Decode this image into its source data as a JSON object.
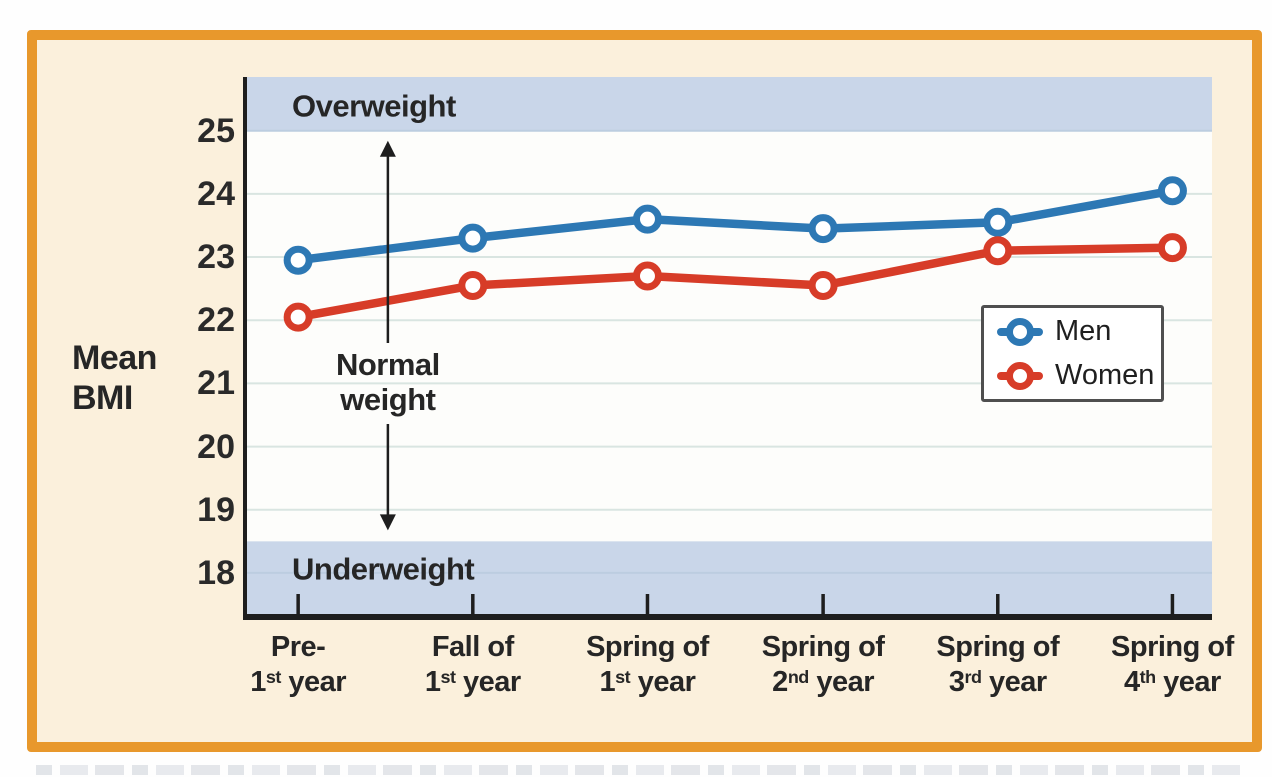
{
  "chart_data": {
    "type": "line",
    "title": "",
    "ylabel": "Mean BMI",
    "ylabel_lines": [
      "Mean",
      "BMI"
    ],
    "ylim": [
      17.35,
      25.85
    ],
    "yticks": [
      25,
      24,
      23,
      22,
      21,
      20,
      19,
      18
    ],
    "grid": true,
    "legend_position": "inside-right",
    "categories": [
      "Pre- 1st year",
      "Fall of 1st year",
      "Spring of 1st year",
      "Spring of 2nd year",
      "Spring of 3rd year",
      "Spring of 4th year"
    ],
    "category_lines": [
      {
        "line1": "Pre-",
        "num": "1",
        "ord": "st",
        "rest": " year"
      },
      {
        "line1": "Fall of",
        "num": "1",
        "ord": "st",
        "rest": " year"
      },
      {
        "line1": "Spring of",
        "num": "1",
        "ord": "st",
        "rest": " year"
      },
      {
        "line1": "Spring of",
        "num": "2",
        "ord": "nd",
        "rest": " year"
      },
      {
        "line1": "Spring of",
        "num": "3",
        "ord": "rd",
        "rest": " year"
      },
      {
        "line1": "Spring of",
        "num": "4",
        "ord": "th",
        "rest": " year"
      }
    ],
    "x_positions_pct": [
      5.3,
      23.4,
      41.5,
      59.7,
      77.8,
      95.9
    ],
    "series": [
      {
        "name": "Men",
        "color": "#2d78b4",
        "values": [
          22.95,
          23.3,
          23.6,
          23.45,
          23.55,
          24.05
        ]
      },
      {
        "name": "Women",
        "color": "#d73c28",
        "values": [
          22.05,
          22.55,
          22.7,
          22.55,
          23.1,
          23.15
        ]
      }
    ],
    "zones": [
      {
        "label": "Overweight",
        "pos": "top",
        "from": 25.0,
        "to": 25.85,
        "fill": "#c9d6e9"
      },
      {
        "label": "Normal weight",
        "label_lines": [
          "Normal",
          "weight"
        ],
        "pos": "middle",
        "from": 18.5,
        "to": 25.0,
        "fill": "none",
        "arrow": true,
        "arrow_x_pct": 14.6
      },
      {
        "label": "Underweight",
        "pos": "bottom",
        "from": 17.35,
        "to": 18.5,
        "fill": "#c9d6e9"
      }
    ],
    "colors": {
      "axis": "#1e1e1e",
      "text": "#262626",
      "grid": "#d9e5e1",
      "grid_in_band": "#bccde0",
      "marker_fill": "#ffffff",
      "frame_border": "#e8982c",
      "frame_background": "#fbf0dc",
      "plot_background": "#fdfdfb",
      "legend_border": "#4f4f4f"
    }
  }
}
